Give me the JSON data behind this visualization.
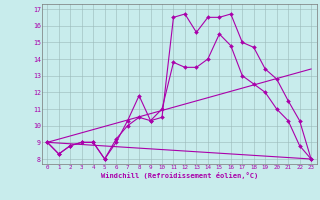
{
  "xlabel": "Windchill (Refroidissement éolien,°C)",
  "background_color": "#c8ecec",
  "line_color": "#aa00aa",
  "xlim": [
    0,
    23
  ],
  "ylim": [
    8,
    17
  ],
  "xticks": [
    0,
    1,
    2,
    3,
    4,
    5,
    6,
    7,
    8,
    9,
    10,
    11,
    12,
    13,
    14,
    15,
    16,
    17,
    18,
    19,
    20,
    21,
    22,
    23
  ],
  "yticks": [
    8,
    9,
    10,
    11,
    12,
    13,
    14,
    15,
    16,
    17
  ],
  "series": [
    {
      "x": [
        0,
        1,
        2,
        3,
        4,
        5,
        6,
        7,
        8,
        9,
        10,
        11,
        12,
        13,
        14,
        15,
        16,
        17,
        18,
        19,
        20,
        21,
        22,
        23
      ],
      "y": [
        9.0,
        8.3,
        8.8,
        9.0,
        9.0,
        8.0,
        9.0,
        10.3,
        11.8,
        10.3,
        10.5,
        16.5,
        16.7,
        15.6,
        16.5,
        16.5,
        16.7,
        15.0,
        14.7,
        13.4,
        12.8,
        11.5,
        10.3,
        8.0
      ],
      "marker": true
    },
    {
      "x": [
        0,
        1,
        2,
        3,
        4,
        5,
        6,
        7,
        8,
        9,
        10,
        11,
        12,
        13,
        14,
        15,
        16,
        17,
        18,
        19,
        20,
        21,
        22,
        23
      ],
      "y": [
        9.0,
        8.3,
        8.8,
        9.0,
        9.0,
        8.0,
        9.2,
        10.0,
        10.5,
        10.3,
        11.0,
        13.8,
        13.5,
        13.5,
        14.0,
        15.5,
        14.8,
        13.0,
        12.5,
        12.0,
        11.0,
        10.3,
        8.8,
        8.0
      ],
      "marker": true
    },
    {
      "x": [
        0,
        23
      ],
      "y": [
        9.0,
        13.4
      ],
      "marker": false
    },
    {
      "x": [
        0,
        23
      ],
      "y": [
        9.0,
        8.0
      ],
      "marker": false
    }
  ]
}
